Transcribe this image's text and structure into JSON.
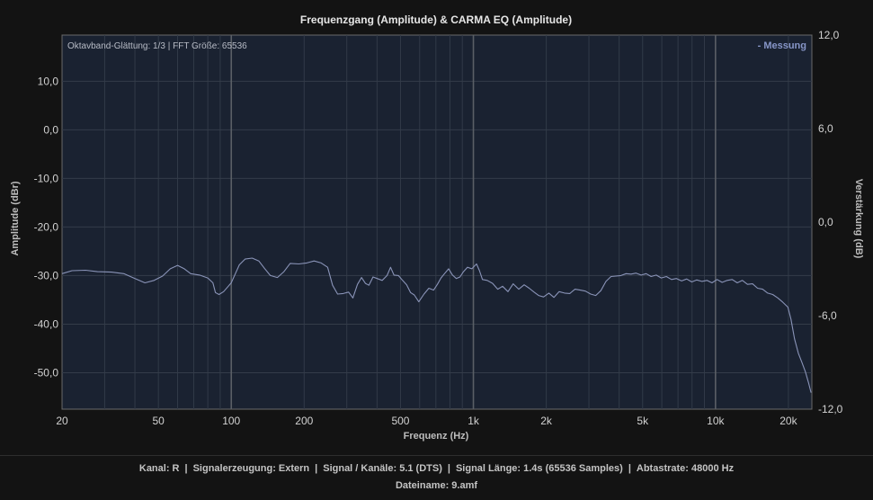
{
  "chart_data": {
    "type": "line",
    "title": "Frequenzgang (Amplitude) & CARMA EQ (Amplitude)",
    "xlabel": "Frequenz (Hz)",
    "ylabel": "Amplitude (dBr)",
    "y2label": "Verstärkung (dB)",
    "xscale": "log",
    "xlim": [
      20,
      25000
    ],
    "ylim": [
      -57.5,
      19.5
    ],
    "y2lim": [
      -12,
      12
    ],
    "x_ticks": [
      20,
      50,
      100,
      200,
      500,
      1000,
      2000,
      5000,
      10000,
      20000
    ],
    "x_tick_labels": [
      "20",
      "50",
      "100",
      "200",
      "500",
      "1k",
      "2k",
      "5k",
      "10k",
      "20k"
    ],
    "y_ticks": [
      10,
      0,
      -10,
      -20,
      -30,
      -40,
      -50
    ],
    "y_tick_labels": [
      "10,0",
      "0,0",
      "-10,0",
      "-20,0",
      "-30,0",
      "-40,0",
      "-50,0"
    ],
    "y2_ticks": [
      12,
      6,
      0,
      -6,
      -12
    ],
    "y2_tick_labels": [
      "12,0",
      "6,0",
      "0,0",
      "-6,0",
      "-12,0"
    ],
    "grid": true,
    "legend_position": "top-right",
    "annotation": "Oktavband-Glättung: 1/3 | FFT Größe: 65536",
    "series": [
      {
        "name": "- Messung",
        "color": "#8a94b8",
        "points": [
          [
            20,
            -29.6
          ],
          [
            22,
            -29.0
          ],
          [
            25,
            -28.9
          ],
          [
            28,
            -29.2
          ],
          [
            32,
            -29.3
          ],
          [
            36,
            -29.6
          ],
          [
            40,
            -30.6
          ],
          [
            44,
            -31.5
          ],
          [
            48,
            -31.0
          ],
          [
            52,
            -30.1
          ],
          [
            56,
            -28.6
          ],
          [
            60,
            -27.9
          ],
          [
            64,
            -28.6
          ],
          [
            68,
            -29.6
          ],
          [
            74,
            -29.9
          ],
          [
            80,
            -30.5
          ],
          [
            84,
            -31.5
          ],
          [
            86,
            -33.5
          ],
          [
            89,
            -33.9
          ],
          [
            93,
            -33.3
          ],
          [
            100,
            -31.5
          ],
          [
            104,
            -29.6
          ],
          [
            108,
            -27.8
          ],
          [
            114,
            -26.6
          ],
          [
            122,
            -26.4
          ],
          [
            130,
            -27.0
          ],
          [
            137,
            -28.5
          ],
          [
            145,
            -30.0
          ],
          [
            155,
            -30.4
          ],
          [
            165,
            -29.2
          ],
          [
            175,
            -27.5
          ],
          [
            190,
            -27.6
          ],
          [
            205,
            -27.4
          ],
          [
            220,
            -27.0
          ],
          [
            235,
            -27.4
          ],
          [
            250,
            -28.3
          ],
          [
            262,
            -32.0
          ],
          [
            275,
            -33.8
          ],
          [
            290,
            -33.7
          ],
          [
            305,
            -33.4
          ],
          [
            318,
            -34.6
          ],
          [
            332,
            -31.8
          ],
          [
            345,
            -30.4
          ],
          [
            358,
            -31.6
          ],
          [
            370,
            -32.0
          ],
          [
            385,
            -30.3
          ],
          [
            400,
            -30.6
          ],
          [
            420,
            -31.0
          ],
          [
            440,
            -30.0
          ],
          [
            455,
            -28.3
          ],
          [
            470,
            -29.9
          ],
          [
            490,
            -30.0
          ],
          [
            510,
            -31.0
          ],
          [
            530,
            -31.9
          ],
          [
            550,
            -33.5
          ],
          [
            570,
            -34.0
          ],
          [
            595,
            -35.4
          ],
          [
            625,
            -33.8
          ],
          [
            655,
            -32.6
          ],
          [
            685,
            -33.0
          ],
          [
            710,
            -31.8
          ],
          [
            735,
            -30.5
          ],
          [
            760,
            -29.6
          ],
          [
            790,
            -28.6
          ],
          [
            820,
            -29.9
          ],
          [
            850,
            -30.6
          ],
          [
            880,
            -30.3
          ],
          [
            910,
            -29.2
          ],
          [
            945,
            -28.3
          ],
          [
            985,
            -28.6
          ],
          [
            1030,
            -27.6
          ],
          [
            1060,
            -29.0
          ],
          [
            1090,
            -30.8
          ],
          [
            1140,
            -31.0
          ],
          [
            1200,
            -31.6
          ],
          [
            1260,
            -32.8
          ],
          [
            1320,
            -32.2
          ],
          [
            1390,
            -33.3
          ],
          [
            1460,
            -31.7
          ],
          [
            1540,
            -32.8
          ],
          [
            1620,
            -31.9
          ],
          [
            1700,
            -32.6
          ],
          [
            1780,
            -33.4
          ],
          [
            1860,
            -34.1
          ],
          [
            1950,
            -34.4
          ],
          [
            2050,
            -33.6
          ],
          [
            2150,
            -34.5
          ],
          [
            2260,
            -33.3
          ],
          [
            2380,
            -33.6
          ],
          [
            2500,
            -33.7
          ],
          [
            2630,
            -32.8
          ],
          [
            2760,
            -33.0
          ],
          [
            2900,
            -33.2
          ],
          [
            3050,
            -33.8
          ],
          [
            3200,
            -34.1
          ],
          [
            3360,
            -33.1
          ],
          [
            3530,
            -31.2
          ],
          [
            3700,
            -30.2
          ],
          [
            3880,
            -30.1
          ],
          [
            4070,
            -30.0
          ],
          [
            4270,
            -29.6
          ],
          [
            4480,
            -29.7
          ],
          [
            4700,
            -29.5
          ],
          [
            4930,
            -29.9
          ],
          [
            5170,
            -29.6
          ],
          [
            5420,
            -30.2
          ],
          [
            5690,
            -29.9
          ],
          [
            5970,
            -30.5
          ],
          [
            6270,
            -30.2
          ],
          [
            6580,
            -30.8
          ],
          [
            6900,
            -30.6
          ],
          [
            7240,
            -31.1
          ],
          [
            7600,
            -30.7
          ],
          [
            7980,
            -31.3
          ],
          [
            8370,
            -30.9
          ],
          [
            8780,
            -31.2
          ],
          [
            9220,
            -31.0
          ],
          [
            9670,
            -31.5
          ],
          [
            10150,
            -30.8
          ],
          [
            10650,
            -31.4
          ],
          [
            11170,
            -31.0
          ],
          [
            11720,
            -30.8
          ],
          [
            12300,
            -31.5
          ],
          [
            12910,
            -31.0
          ],
          [
            13550,
            -31.8
          ],
          [
            14220,
            -31.7
          ],
          [
            14920,
            -32.6
          ],
          [
            15650,
            -32.8
          ],
          [
            16420,
            -33.6
          ],
          [
            17230,
            -33.9
          ],
          [
            18080,
            -34.6
          ],
          [
            18970,
            -35.5
          ],
          [
            19900,
            -36.5
          ],
          [
            20500,
            -39.0
          ],
          [
            21200,
            -43.0
          ],
          [
            22000,
            -46.0
          ],
          [
            22800,
            -48.0
          ],
          [
            23500,
            -49.8
          ],
          [
            24200,
            -52.0
          ],
          [
            24800,
            -54.1
          ]
        ]
      }
    ]
  },
  "footer": {
    "kanal": "Kanal: R",
    "signalerzeugung": "Signalerzeugung: Extern",
    "signal_kanaele": "Signal / Kanäle: 5.1 (DTS)",
    "signal_laenge": "Signal Länge: 1.4s (65536 Samples)",
    "abtastrate": "Abtastrate: 48000 Hz",
    "dateiname": "Dateiname: 9.amf",
    "separator": "|"
  }
}
